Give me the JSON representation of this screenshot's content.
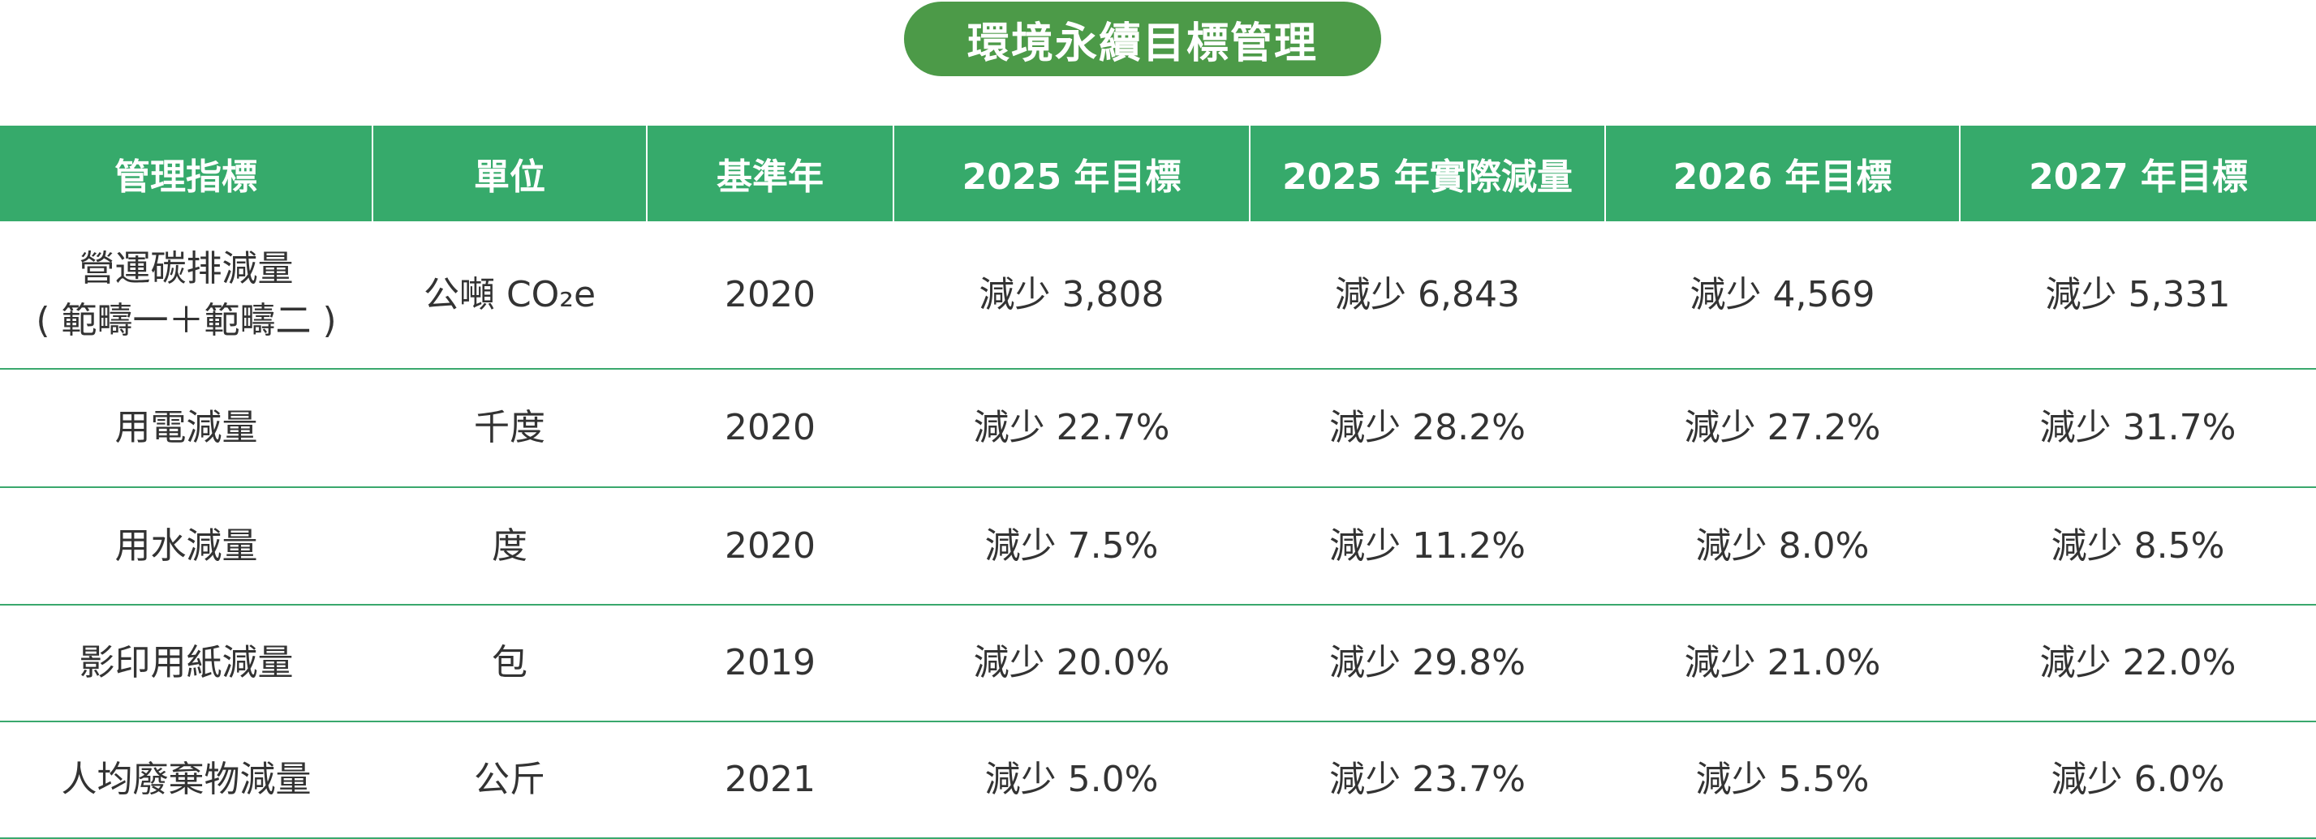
{
  "title": "環境永續目標管理",
  "table": {
    "header": [
      "管理指標",
      "單位",
      "基準年",
      "2025 年目標",
      "2025 年實際減量",
      "2026 年目標",
      "2027 年目標"
    ],
    "rows": [
      [
        "營運碳排減量\n( 範疇一＋範疇二 )",
        "公噸 CO₂e",
        "2020",
        "減少 3,808",
        "減少 6,843",
        "減少 4,569",
        "減少 5,331"
      ],
      [
        "用電減量",
        "千度",
        "2020",
        "減少 22.7%",
        "減少 28.2%",
        "減少 27.2%",
        "減少 31.7%"
      ],
      [
        "用水減量",
        "度",
        "2020",
        "減少 7.5%",
        "減少 11.2%",
        "減少 8.0%",
        "減少 8.5%"
      ],
      [
        "影印用紙減量",
        "包",
        "2019",
        "減少 20.0%",
        "減少 29.8%",
        "減少 21.0%",
        "減少 22.0%"
      ],
      [
        "人均廢棄物減量",
        "公斤",
        "2021",
        "減少 5.0%",
        "減少 23.7%",
        "減少 5.5%",
        "減少 6.0%"
      ]
    ]
  }
}
